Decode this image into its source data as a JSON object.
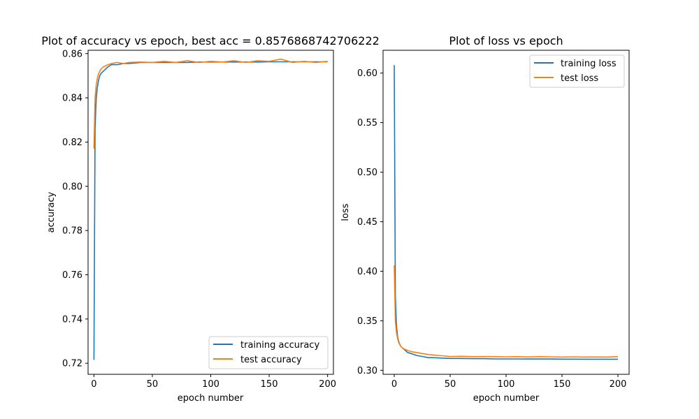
{
  "chart_data": [
    {
      "type": "line",
      "title": "Plot of accuracy vs epoch, best acc = 0.8576868742706222",
      "xlabel": "epoch number",
      "ylabel": "accuracy",
      "xlim": [
        -5,
        205
      ],
      "ylim": [
        0.715,
        0.8615
      ],
      "xticks": [
        0,
        50,
        100,
        150,
        200
      ],
      "xtick_labels": [
        "0",
        "50",
        "100",
        "150",
        "200"
      ],
      "yticks": [
        0.72,
        0.74,
        0.76,
        0.78,
        0.8,
        0.82,
        0.84,
        0.86
      ],
      "ytick_labels": [
        "0.72",
        "0.74",
        "0.76",
        "0.78",
        "0.80",
        "0.82",
        "0.84",
        "0.86"
      ],
      "legend_position": "lower-right",
      "series": [
        {
          "name": "training accuracy",
          "color": "#1f77b4",
          "x": [
            0,
            1,
            2,
            3,
            4,
            5,
            6,
            8,
            10,
            12,
            15,
            20,
            25,
            30,
            40,
            50,
            60,
            70,
            80,
            90,
            100,
            110,
            120,
            130,
            140,
            150,
            160,
            170,
            180,
            190,
            200
          ],
          "y": [
            0.7215,
            0.826,
            0.84,
            0.845,
            0.848,
            0.85,
            0.851,
            0.852,
            0.853,
            0.854,
            0.855,
            0.855,
            0.8555,
            0.8555,
            0.856,
            0.856,
            0.856,
            0.856,
            0.856,
            0.8562,
            0.8562,
            0.8562,
            0.8562,
            0.8562,
            0.8562,
            0.8563,
            0.8563,
            0.8563,
            0.8563,
            0.8563,
            0.8563
          ]
        },
        {
          "name": "test accuracy",
          "color": "#ff7f0e",
          "x": [
            0,
            1,
            2,
            3,
            4,
            5,
            6,
            8,
            10,
            12,
            15,
            20,
            25,
            30,
            40,
            50,
            60,
            70,
            80,
            90,
            100,
            110,
            120,
            130,
            140,
            150,
            160,
            170,
            180,
            190,
            200
          ],
          "y": [
            0.817,
            0.84,
            0.846,
            0.849,
            0.851,
            0.852,
            0.853,
            0.854,
            0.8545,
            0.855,
            0.8555,
            0.856,
            0.8555,
            0.856,
            0.8562,
            0.856,
            0.8565,
            0.856,
            0.8568,
            0.856,
            0.8565,
            0.8562,
            0.8568,
            0.856,
            0.8568,
            0.8565,
            0.8575,
            0.856,
            0.8565,
            0.856,
            0.8565
          ]
        }
      ]
    },
    {
      "type": "line",
      "title": "Plot of loss vs epoch",
      "xlabel": "epoch number",
      "ylabel": "loss",
      "xlim": [
        -10,
        210
      ],
      "ylim": [
        0.296,
        0.623
      ],
      "xticks": [
        0,
        50,
        100,
        150,
        200
      ],
      "xtick_labels": [
        "0",
        "50",
        "100",
        "150",
        "200"
      ],
      "yticks": [
        0.3,
        0.35,
        0.4,
        0.45,
        0.5,
        0.55,
        0.6
      ],
      "ytick_labels": [
        "0.30",
        "0.35",
        "0.40",
        "0.45",
        "0.50",
        "0.55",
        "0.60"
      ],
      "legend_position": "upper-right",
      "series": [
        {
          "name": "training loss",
          "color": "#1f77b4",
          "x": [
            0,
            1,
            2,
            3,
            4,
            5,
            6,
            8,
            10,
            12,
            15,
            20,
            25,
            30,
            40,
            50,
            60,
            70,
            80,
            90,
            100,
            110,
            120,
            130,
            140,
            150,
            160,
            170,
            180,
            190,
            200
          ],
          "y": [
            0.608,
            0.375,
            0.345,
            0.334,
            0.329,
            0.326,
            0.324,
            0.322,
            0.32,
            0.318,
            0.317,
            0.315,
            0.314,
            0.313,
            0.3125,
            0.312,
            0.312,
            0.3118,
            0.3118,
            0.3115,
            0.3115,
            0.3115,
            0.3114,
            0.3114,
            0.3114,
            0.3113,
            0.3113,
            0.3112,
            0.3112,
            0.3112,
            0.3112
          ]
        },
        {
          "name": "test loss",
          "color": "#ff7f0e",
          "x": [
            0,
            1,
            2,
            3,
            4,
            5,
            6,
            8,
            10,
            12,
            15,
            20,
            25,
            30,
            40,
            50,
            60,
            70,
            80,
            90,
            100,
            110,
            120,
            130,
            140,
            150,
            160,
            170,
            180,
            190,
            200
          ],
          "y": [
            0.406,
            0.35,
            0.338,
            0.332,
            0.328,
            0.326,
            0.324,
            0.322,
            0.321,
            0.32,
            0.319,
            0.318,
            0.317,
            0.316,
            0.315,
            0.314,
            0.3142,
            0.3138,
            0.314,
            0.3138,
            0.3136,
            0.3138,
            0.3135,
            0.3138,
            0.3136,
            0.3134,
            0.3136,
            0.3134,
            0.3135,
            0.3134,
            0.3138
          ]
        }
      ]
    }
  ]
}
